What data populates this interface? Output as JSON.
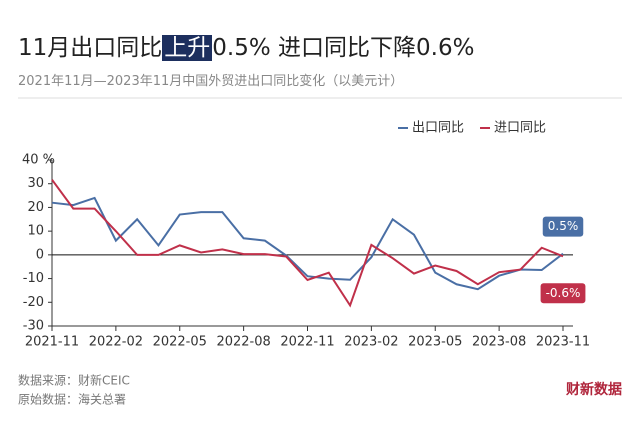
{
  "chart_data": {
    "type": "line",
    "title_parts": [
      "11月出口同比",
      "上升",
      "0.5% 进口同比下降0.6%"
    ],
    "subtitle": "2021年11月—2023年11月中国外贸进出口同比变化（以美元计）",
    "categories": [
      "2021-11",
      null,
      null,
      "2022-02",
      null,
      null,
      "2022-05",
      null,
      null,
      "2022-08",
      null,
      null,
      "2022-11",
      null,
      null,
      "2023-02",
      null,
      null,
      "2023-05",
      null,
      null,
      "2023-08",
      null,
      null,
      "2023-11"
    ],
    "series": [
      {
        "name": "出口同比",
        "color": "#4a6fa5",
        "values": [
          22,
          21,
          24,
          6,
          15,
          4,
          17,
          18,
          18,
          7,
          6,
          -0.3,
          -9,
          -10,
          -10.5,
          -1,
          15,
          8.5,
          -7.5,
          -12.4,
          -14.5,
          -8.8,
          -6.2,
          -6.4,
          0.5
        ]
      },
      {
        "name": "进口同比",
        "color": "#c0304a",
        "values": [
          31.7,
          19.5,
          19.5,
          10,
          0,
          0,
          4,
          1,
          2.3,
          0.3,
          0.3,
          -0.7,
          -10.6,
          -7.5,
          -21.3,
          4.2,
          -1.4,
          -7.9,
          -4.5,
          -6.8,
          -12.4,
          -7.3,
          -6.2,
          3,
          -0.6
        ]
      }
    ],
    "annotations": [
      "0.5%",
      "-0.6%"
    ],
    "ylim": [
      -30,
      40
    ],
    "yticks": [
      -30,
      -20,
      -10,
      0,
      10,
      20,
      {
        "value": 40,
        "label": "40 %"
      },
      30
    ],
    "legend": "top-right",
    "sources": [
      "数据来源：财新CEIC",
      "原始数据：海关总署"
    ],
    "logo": "财新数据"
  }
}
